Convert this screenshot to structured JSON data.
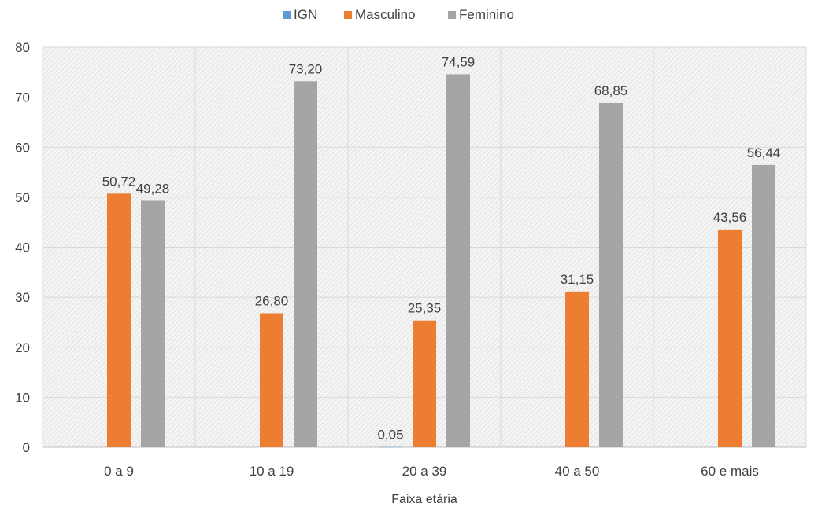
{
  "chart_data": {
    "type": "bar",
    "title": "",
    "xlabel": "Faixa etária",
    "ylabel": "",
    "categories": [
      "0 a 9",
      "10 a 19",
      "20 a 39",
      "40 a 50",
      "60 e mais"
    ],
    "series": [
      {
        "name": "IGN",
        "color": "#5B9BD5",
        "values": [
          0,
          0,
          0.05,
          0,
          0
        ],
        "labels": [
          "",
          "",
          "0,05",
          "",
          ""
        ]
      },
      {
        "name": "Masculino",
        "color": "#ED7D31",
        "values": [
          50.72,
          26.8,
          25.35,
          31.15,
          43.56
        ],
        "labels": [
          "50,72",
          "26,80",
          "25,35",
          "31,15",
          "43,56"
        ]
      },
      {
        "name": "Feminino",
        "color": "#A5A5A5",
        "values": [
          49.28,
          73.2,
          74.59,
          68.85,
          56.44
        ],
        "labels": [
          "49,28",
          "73,20",
          "74,59",
          "68,85",
          "56,44"
        ]
      }
    ],
    "ylim": [
      0,
      80
    ],
    "yticks": [
      0,
      10,
      20,
      30,
      40,
      50,
      60,
      70,
      80
    ],
    "grid": true,
    "legend_position": "top"
  }
}
